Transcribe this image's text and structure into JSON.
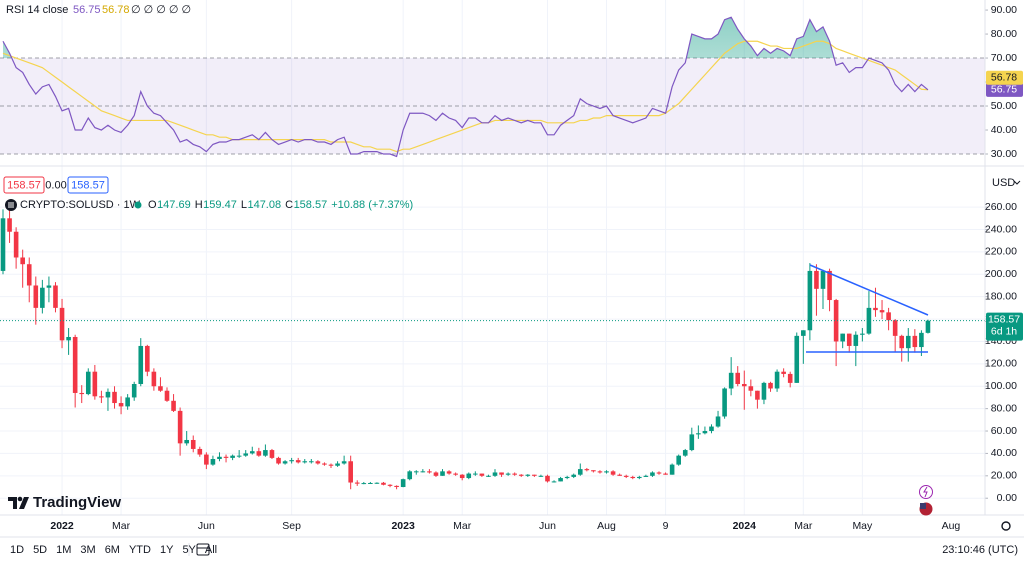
{
  "ui": {
    "logo": "TradingView",
    "currency": "USD",
    "trade_boxes": [
      "158.57",
      "0.00",
      "158.57"
    ],
    "toolbar": {
      "ranges": [
        "1D",
        "5D",
        "1M",
        "3M",
        "6M",
        "YTD",
        "1Y",
        "5Y",
        "All"
      ],
      "clock": "23:10:46 (UTC)"
    }
  },
  "chart_data": [
    {
      "type": "candlestick",
      "title": "CRYPTO:SOLUSD · 1W",
      "legend": {
        "ohlc": [
          {
            "key": "O",
            "value": "147.69"
          },
          {
            "key": "H",
            "value": "159.47"
          },
          {
            "key": "L",
            "value": "147.08"
          },
          {
            "key": "C",
            "value": "158.57"
          }
        ],
        "change": "+10.88 (+7.37%)"
      },
      "countdown": "6d 1h",
      "up_color": "#089981",
      "down_color": "#f23645",
      "grid": true,
      "future_labels": [
        "Aug"
      ],
      "categories": [
        null,
        null,
        null,
        null,
        null,
        null,
        null,
        null,
        null,
        "2022",
        null,
        null,
        null,
        null,
        null,
        null,
        null,
        null,
        "Mar",
        null,
        null,
        null,
        null,
        null,
        null,
        null,
        null,
        null,
        null,
        null,
        null,
        "Jun",
        null,
        null,
        null,
        null,
        null,
        null,
        null,
        null,
        null,
        null,
        null,
        null,
        "Sep",
        null,
        null,
        null,
        null,
        null,
        null,
        null,
        null,
        null,
        null,
        null,
        null,
        null,
        null,
        null,
        null,
        "2023",
        null,
        null,
        null,
        null,
        null,
        null,
        null,
        null,
        "Mar",
        null,
        null,
        null,
        null,
        null,
        null,
        null,
        null,
        null,
        null,
        null,
        null,
        "Jun",
        null,
        null,
        null,
        null,
        null,
        null,
        null,
        null,
        "Aug",
        null,
        null,
        null,
        null,
        null,
        null,
        null,
        null,
        "9",
        null,
        null,
        null,
        null,
        null,
        null,
        null,
        null,
        null,
        null,
        null,
        "2024",
        null,
        null,
        null,
        null,
        null,
        null,
        null,
        null,
        "Mar",
        null,
        null,
        null,
        null,
        null,
        null,
        null,
        null,
        "May",
        null,
        null,
        null,
        null,
        null,
        null,
        null,
        null,
        null,
        null
      ],
      "open": [
        203,
        250,
        238,
        215,
        209,
        190,
        170,
        188,
        190,
        170,
        141,
        144,
        94,
        93,
        113,
        91,
        90,
        95,
        85,
        82,
        90,
        102,
        136,
        113,
        100,
        96,
        87,
        78,
        49,
        52,
        44,
        39,
        30,
        35,
        37,
        36,
        38,
        38,
        40,
        42,
        38,
        43,
        36,
        31,
        33,
        34,
        32,
        33,
        33,
        31,
        30,
        29,
        31,
        33,
        14,
        13,
        13.5,
        13.6,
        13.8,
        12,
        11,
        10,
        17,
        24,
        24,
        24,
        23,
        20,
        24,
        22,
        21,
        18,
        22,
        22,
        20,
        20,
        23,
        21,
        22,
        21,
        20,
        21,
        20,
        20,
        15,
        15,
        18,
        19,
        21,
        26,
        25,
        24,
        23,
        24,
        21,
        20,
        19,
        18,
        19,
        20,
        23,
        22,
        21,
        30,
        38,
        43,
        57,
        58,
        60,
        64,
        73,
        98,
        112,
        102,
        100,
        96,
        88,
        103,
        98,
        113,
        111,
        103,
        145,
        150,
        203,
        187,
        203,
        177,
        140,
        147,
        136,
        146,
        147,
        170,
        168,
        166,
        159,
        145,
        134,
        145,
        135,
        147.69
      ],
      "high": [
        258,
        260,
        242,
        222,
        215,
        198,
        195,
        198,
        193,
        178,
        152,
        146,
        101,
        116,
        119,
        96,
        98,
        100,
        91,
        93,
        104,
        143,
        137,
        116,
        108,
        99,
        93,
        81,
        60,
        56,
        46,
        41,
        38,
        41,
        39,
        39,
        43,
        43,
        46,
        45,
        48,
        44,
        37,
        34,
        36,
        36,
        35,
        35,
        34,
        32,
        31,
        33,
        38,
        38,
        16,
        14.5,
        14.5,
        14.2,
        14.5,
        12.5,
        11.5,
        17.5,
        25,
        25,
        26,
        26,
        24,
        26,
        25,
        23,
        21.5,
        23,
        24,
        22,
        21,
        26,
        23,
        23,
        23,
        21.5,
        21.5,
        21,
        21,
        21,
        16,
        19,
        20,
        22,
        31,
        27,
        25,
        25,
        25,
        25,
        22,
        21,
        20,
        20,
        21,
        24,
        24,
        23,
        31,
        39,
        44,
        63,
        65,
        64,
        66,
        78,
        99,
        126,
        118,
        114,
        106,
        96,
        104,
        104,
        115,
        116,
        113,
        148,
        150,
        210,
        209,
        204,
        205,
        178,
        147,
        147,
        149,
        152,
        185,
        188,
        177,
        170,
        160,
        146,
        152,
        151,
        150,
        159.47
      ],
      "low": [
        200,
        228,
        205,
        188,
        175,
        155,
        165,
        175,
        166,
        134,
        128,
        81,
        85,
        92,
        88,
        85,
        78,
        80,
        75,
        79,
        87,
        100,
        109,
        96,
        95,
        86,
        77,
        38,
        47,
        41,
        37,
        26,
        29,
        33,
        32,
        34,
        36,
        37,
        39,
        37,
        37,
        35,
        30,
        30,
        31,
        31,
        31,
        31,
        30,
        29,
        27,
        28,
        30,
        8,
        11,
        12.5,
        13,
        12.8,
        11.5,
        9.8,
        8,
        9.8,
        16,
        21,
        23,
        22,
        19,
        20,
        21,
        20,
        16,
        17,
        20,
        19,
        19,
        19,
        19,
        20,
        20,
        19,
        19,
        19,
        19,
        14,
        14,
        15,
        17,
        18,
        20,
        24,
        23,
        22,
        22,
        20,
        20,
        18,
        17,
        17,
        19,
        19,
        21,
        21,
        21,
        29,
        37,
        42,
        53,
        57,
        58,
        63,
        71,
        92,
        100,
        79,
        91,
        80,
        84,
        95,
        95,
        108,
        99,
        103,
        120,
        141,
        163,
        169,
        167,
        118,
        134,
        130,
        118,
        140,
        146,
        162,
        160,
        150,
        131,
        122,
        122,
        130,
        127,
        147.08
      ],
      "close": [
        250,
        238,
        215,
        209,
        190,
        170,
        188,
        190,
        170,
        141,
        144,
        94,
        93,
        113,
        91,
        90,
        95,
        85,
        82,
        90,
        102,
        136,
        113,
        100,
        96,
        87,
        78,
        49,
        52,
        44,
        39,
        30,
        35,
        37,
        36,
        38,
        38,
        40,
        42,
        38,
        43,
        36,
        31,
        33,
        34,
        32,
        33,
        33,
        31,
        30,
        29,
        31,
        33,
        14,
        13,
        13.5,
        13.6,
        13.8,
        12,
        11,
        10,
        17,
        24,
        24,
        24,
        23,
        20,
        24,
        22,
        21,
        18,
        22,
        22,
        20,
        20,
        23,
        21,
        22,
        21,
        20,
        21,
        20,
        20,
        15,
        15,
        18,
        19,
        21,
        26,
        25,
        24,
        23,
        24,
        21,
        20,
        19,
        18,
        19,
        20,
        23,
        22,
        21,
        30,
        38,
        43,
        57,
        58,
        60,
        64,
        73,
        98,
        112,
        102,
        100,
        96,
        88,
        103,
        98,
        113,
        111,
        103,
        145,
        150,
        203,
        187,
        203,
        177,
        140,
        147,
        136,
        146,
        147,
        170,
        168,
        166,
        159,
        145,
        134,
        145,
        135,
        147.69,
        158.57
      ],
      "ylim": [
        -15,
        286
      ],
      "yticks": [
        {
          "value": 0,
          "label": "0.00"
        },
        {
          "value": 20,
          "label": "20.00"
        },
        {
          "value": 40,
          "label": "40.00"
        },
        {
          "value": 60,
          "label": "60.00"
        },
        {
          "value": 80,
          "label": "80.00"
        },
        {
          "value": 100,
          "label": "100.00"
        },
        {
          "value": 120,
          "label": "120.00"
        },
        {
          "value": 140,
          "label": "140.00"
        },
        {
          "value": 160,
          "label": "160.00"
        },
        {
          "value": 180,
          "label": "180.00"
        },
        {
          "value": 200,
          "label": "200.00"
        },
        {
          "value": 220,
          "label": "220.00"
        },
        {
          "value": 240,
          "label": "240.00"
        },
        {
          "value": 260,
          "label": "260.00"
        }
      ]
    },
    {
      "type": "line",
      "title": "RSI 14 close",
      "legend_extra": "∅ ∅ ∅ ∅ ∅",
      "levels": [
        70,
        50,
        30
      ],
      "band_color": "#7e57c2",
      "series": [
        {
          "color": "#7e57c2",
          "values": [
            77,
            72,
            66,
            64,
            59,
            55,
            58,
            59,
            54,
            48,
            49,
            40,
            40,
            45,
            41,
            40,
            42,
            40,
            39,
            42,
            46,
            56,
            50,
            47,
            46,
            43,
            40,
            35,
            36,
            34,
            33,
            31,
            34,
            35,
            35,
            36,
            36,
            37,
            38,
            36,
            39,
            36,
            34,
            35,
            36,
            35,
            36,
            36,
            35,
            35,
            34,
            36,
            37,
            30,
            30,
            31,
            31,
            31,
            30,
            30,
            29,
            40,
            47,
            47,
            47,
            46,
            44,
            47,
            45,
            44,
            41,
            45,
            45,
            43,
            43,
            46,
            44,
            45,
            44,
            43,
            44,
            43,
            43,
            38,
            38,
            42,
            44,
            46,
            53,
            51,
            50,
            49,
            50,
            46,
            45,
            44,
            43,
            44,
            45,
            49,
            48,
            47,
            58,
            65,
            68,
            80,
            79,
            78,
            78,
            80,
            86,
            87,
            82,
            78,
            75,
            71,
            74,
            72,
            74,
            73,
            71,
            78,
            79,
            86,
            81,
            83,
            77,
            67,
            68,
            64,
            66,
            66,
            70,
            69,
            68,
            65,
            59,
            56,
            59,
            56,
            59,
            56.75
          ]
        },
        {
          "color": "#f5d44f",
          "values": [
            72,
            71,
            70,
            69,
            68,
            67,
            66,
            64,
            62,
            60,
            58,
            56,
            54,
            52,
            50,
            48,
            47,
            46,
            45,
            44,
            44,
            44,
            44,
            44,
            44,
            44,
            43,
            42,
            41,
            40,
            39,
            38,
            38,
            37,
            37,
            36,
            36,
            36,
            36,
            36,
            36,
            36,
            36,
            36,
            36,
            36,
            36,
            36,
            36,
            36,
            35,
            35,
            35,
            35,
            34,
            33,
            33,
            32,
            32,
            32,
            31,
            32,
            32,
            33,
            34,
            35,
            36,
            37,
            38,
            39,
            40,
            41,
            42,
            43,
            43,
            44,
            44,
            44,
            44,
            44,
            44,
            44,
            44,
            43,
            43,
            43,
            43,
            43,
            44,
            44,
            45,
            45,
            46,
            46,
            46,
            46,
            46,
            46,
            46,
            46,
            46,
            47,
            49,
            51,
            54,
            57,
            60,
            63,
            66,
            69,
            72,
            74,
            76,
            77,
            77,
            77,
            76,
            75,
            75,
            74,
            74,
            74,
            75,
            76,
            77,
            77,
            76,
            74,
            73,
            72,
            71,
            70,
            69,
            68,
            67,
            66,
            65,
            63,
            61,
            59,
            57,
            56.78
          ]
        }
      ],
      "ylim": [
        27.5,
        94.2
      ],
      "yticks": [
        {
          "value": 30,
          "label": "30.00"
        },
        {
          "value": 40,
          "label": "40.00"
        },
        {
          "value": 50,
          "label": "50.00"
        },
        {
          "value": 60,
          "label": "60.00"
        },
        {
          "value": 70,
          "label": "70.00"
        },
        {
          "value": 80,
          "label": "80.00"
        },
        {
          "value": 90,
          "label": "90.00"
        }
      ]
    }
  ]
}
